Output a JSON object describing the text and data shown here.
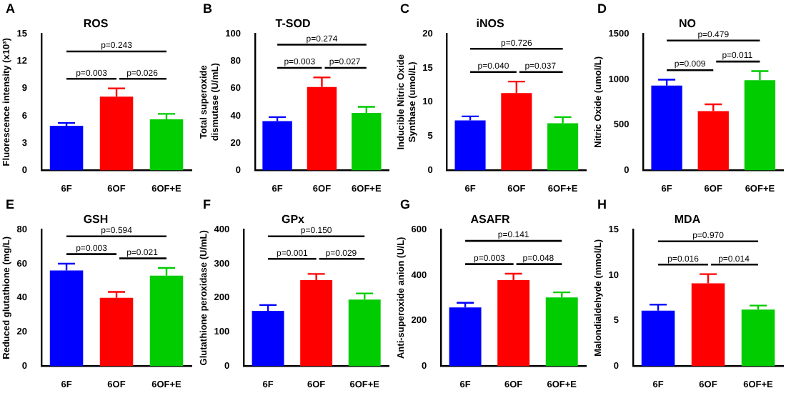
{
  "chart_data": [
    {
      "type": "bar",
      "title": "ROS",
      "ylabel": "Fluorescence intensity (x10³)",
      "categories": [
        "6F",
        "6OF",
        "6OF+E"
      ],
      "values": [
        4.9,
        8.1,
        5.6
      ],
      "errors": [
        0.3,
        0.9,
        0.6
      ],
      "colors": [
        "#0000ff",
        "#ff0000",
        "#00cc00"
      ],
      "ylim": [
        0,
        15
      ],
      "yticks": [
        0,
        3,
        6,
        9,
        12,
        15
      ],
      "grid": false,
      "annotations": [
        "A",
        "p=0.243",
        "p=0.003",
        "p=0.026"
      ]
    },
    {
      "type": "bar",
      "title": "T-SOD",
      "ylabel": "Total superoxide\ndismutase (U/mL)",
      "categories": [
        "6F",
        "6OF",
        "6OF+E"
      ],
      "values": [
        36,
        61,
        42
      ],
      "errors": [
        3,
        7,
        4.5
      ],
      "colors": [
        "#0000ff",
        "#ff0000",
        "#00cc00"
      ],
      "ylim": [
        0,
        100
      ],
      "yticks": [
        0,
        20,
        40,
        60,
        80,
        100
      ],
      "grid": false,
      "annotations": [
        "B",
        "p=0.274",
        "p=0.003",
        "p=0.027"
      ]
    },
    {
      "type": "bar",
      "title": "iNOS",
      "ylabel": "Inducible Nitric Oxide\nSynthase (umol/L)",
      "categories": [
        "6F",
        "6OF",
        "6OF+E"
      ],
      "values": [
        7.3,
        11.3,
        6.9
      ],
      "errors": [
        0.6,
        1.7,
        0.9
      ],
      "colors": [
        "#0000ff",
        "#ff0000",
        "#00cc00"
      ],
      "ylim": [
        0,
        20
      ],
      "yticks": [
        0,
        5,
        10,
        15,
        20
      ],
      "grid": false,
      "annotations": [
        "C",
        "p=0.726",
        "p=0.040",
        "p=0.037"
      ]
    },
    {
      "type": "bar",
      "title": "NO",
      "ylabel": "Nitric Oxide (umol/L)",
      "categories": [
        "6F",
        "6OF",
        "6OF+E"
      ],
      "values": [
        930,
        650,
        990
      ],
      "errors": [
        65,
        75,
        100
      ],
      "colors": [
        "#0000ff",
        "#ff0000",
        "#00cc00"
      ],
      "ylim": [
        0,
        1500
      ],
      "yticks": [
        0,
        500,
        1000,
        1500
      ],
      "grid": false,
      "annotations": [
        "D",
        "p=0.479",
        "p=0.009",
        "p=0.011"
      ]
    },
    {
      "type": "bar",
      "title": "GSH",
      "ylabel": "Reduced glutathione (mg/L)",
      "categories": [
        "6F",
        "6OF",
        "6OF+E"
      ],
      "values": [
        56,
        40,
        53
      ],
      "errors": [
        4,
        3.5,
        4.5
      ],
      "colors": [
        "#0000ff",
        "#ff0000",
        "#00cc00"
      ],
      "ylim": [
        0,
        80
      ],
      "yticks": [
        0,
        20,
        40,
        60,
        80
      ],
      "grid": false,
      "annotations": [
        "E",
        "p=0.594",
        "p=0.003",
        "p=0.021"
      ]
    },
    {
      "type": "bar",
      "title": "GPx",
      "ylabel": "Glutathione peroxidase (U/mL)",
      "categories": [
        "6F",
        "6OF",
        "6OF+E"
      ],
      "values": [
        162,
        252,
        195
      ],
      "errors": [
        17,
        18,
        18
      ],
      "colors": [
        "#0000ff",
        "#ff0000",
        "#00cc00"
      ],
      "ylim": [
        0,
        400
      ],
      "yticks": [
        0,
        100,
        200,
        300,
        400
      ],
      "grid": false,
      "annotations": [
        "F",
        "p=0.150",
        "p=0.001",
        "p=0.029"
      ]
    },
    {
      "type": "bar",
      "title": "ASAFR",
      "ylabel": "Anti-superoxide anion (U/L)",
      "categories": [
        "6F",
        "6OF",
        "6OF+E"
      ],
      "values": [
        258,
        378,
        302
      ],
      "errors": [
        20,
        28,
        22
      ],
      "colors": [
        "#0000ff",
        "#ff0000",
        "#00cc00"
      ],
      "ylim": [
        0,
        600
      ],
      "yticks": [
        0,
        200,
        400,
        600
      ],
      "grid": false,
      "annotations": [
        "G",
        "p=0.141",
        "p=0.003",
        "p=0.048"
      ]
    },
    {
      "type": "bar",
      "title": "MDA",
      "ylabel": "Malondialdehyde (mmol/L)",
      "categories": [
        "6F",
        "6OF",
        "6OF+E"
      ],
      "values": [
        6.1,
        9.1,
        6.2
      ],
      "errors": [
        0.65,
        1.0,
        0.45
      ],
      "colors": [
        "#0000ff",
        "#ff0000",
        "#00cc00"
      ],
      "ylim": [
        0,
        15
      ],
      "yticks": [
        0,
        5,
        10,
        15
      ],
      "grid": false,
      "annotations": [
        "H",
        "p=0.970",
        "p=0.016",
        "p=0.014"
      ]
    }
  ]
}
